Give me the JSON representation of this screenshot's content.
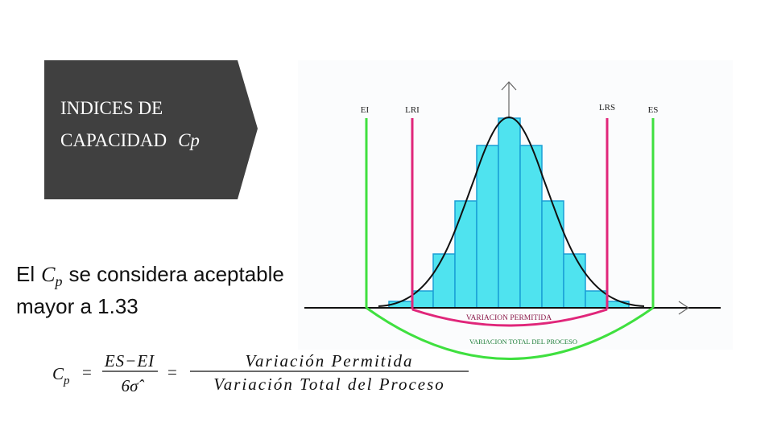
{
  "title": {
    "lines": [
      "INDICES DE",
      "CAPACIDAD"
    ],
    "symbol": "Cp"
  },
  "diagram": {
    "labels": [
      "EI",
      "LRI",
      "LRS",
      "ES"
    ],
    "inner_band": "VARIACION PERMITIDA",
    "outer_band": "VARIACION TOTAL DEL PROCESO"
  },
  "body": {
    "before": "El",
    "symbol": "C",
    "subscript": "p",
    "after": "se considera aceptable",
    "line2": "mayor a 1.33"
  },
  "formula": {
    "symbol": "C",
    "subscript": "p",
    "equals": "=",
    "numerator1": "ES−EI",
    "denominator1": "6σ̂",
    "numerator2": "Variación Permitida",
    "denominator2": "Variación Total del Proceso"
  }
}
